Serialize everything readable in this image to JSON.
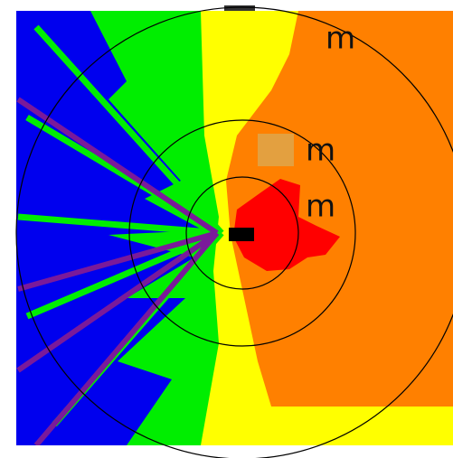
{
  "ring_labels": [
    "m",
    "m",
    "m"
  ]
}
